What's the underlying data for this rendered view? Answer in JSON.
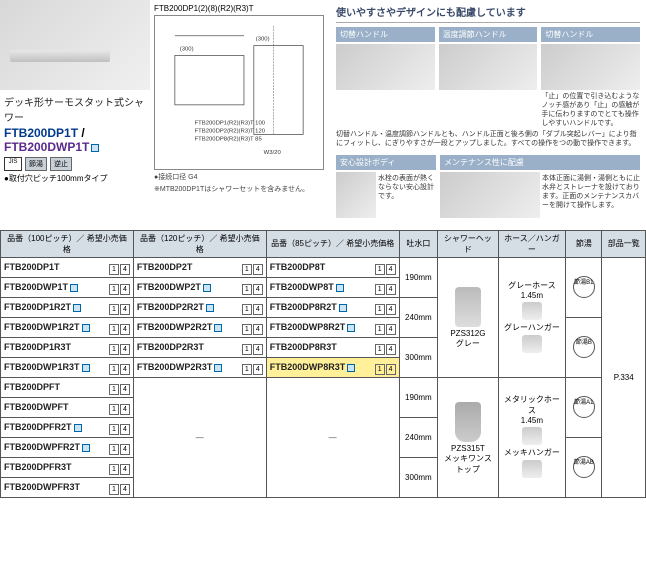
{
  "top": {
    "product_title": "デッキ形サーモスタット式シャワー",
    "num_a": "FTB200DP1T",
    "num_b": "FTB200DWP1T",
    "jis": "JIS",
    "badge1": "節湯",
    "badge2": "逆止",
    "mount_note": "●取付穴ピッチ100mmタイプ",
    "tech_label": "FTB200DP1(2)(8)(R2)(R3)T",
    "tech_note": "※MTB200DP1Tはシャワーセットを含みません。",
    "diag_connector": "●接続口径 G4"
  },
  "feat": {
    "header": "使いやすさやデザインにも配慮しています",
    "f1_t": "切替ハンドル",
    "f2_t": "温度調節ハンドル",
    "f3_t": "切替ハンドル",
    "f12_desc": "切替ハンドル・温度調節ハンドルとも、ハンドル正面と後ろ側の「ダブル突起レバー」により指にフィットし、にぎりやすさが一段とアップしました。すべての操作をつの動で操作できます。",
    "f3_desc": "「止」の位置で引き込むようなノッチ感があり「止」の感触が手に伝わりますのでとても操作しやすいハンドルです。",
    "f4_t": "安心設計ボディ",
    "f4_desc": "水栓の表面が熱くならない安心設計です。",
    "f5_t": "メンテナンス性に配慮",
    "f5_desc": "本体正面に湯側・湯側ともに止水弁とストレーナを設けております。正面のメンテナンスカバーを開けて操作します。"
  },
  "headers": {
    "h1": "品番（100ピッチ）／ 希望小売価格",
    "h2": "品番（120ピッチ）／ 希望小売価格",
    "h3": "品番（85ピッチ）／ 希望小売価格",
    "h4": "吐水口",
    "h5": "シャワーヘッド",
    "h6": "ホース／ハンガー",
    "h7": "節湯",
    "h8": "部品一覧"
  },
  "rows": {
    "c1": [
      "FTB200DP1T",
      "FTB200DWP1T",
      "FTB200DP1R2T",
      "FTB200DWP1R2T",
      "FTB200DP1R3T",
      "FTB200DWP1R3T",
      "FTB200DPFT",
      "FTB200DWPFT",
      "FTB200DPFR2T",
      "FTB200DWPFR2T",
      "FTB200DPFR3T",
      "FTB200DWPFR3T"
    ],
    "c2": [
      "FTB200DP2T",
      "FTB200DWP2T",
      "FTB200DP2R2T",
      "FTB200DWP2R2T",
      "FTB200DP2R3T",
      "FTB200DWP2R3T"
    ],
    "c3": [
      "FTB200DP8T",
      "FTB200DWP8T",
      "FTB200DP8R2T",
      "FTB200DWP8R2T",
      "FTB200DP8R3T",
      "FTB200DWP8R3T"
    ]
  },
  "codes": {
    "c14": "14",
    "c1": "1",
    "c4": "4"
  },
  "spout": {
    "s190": "190mm",
    "s240": "240mm",
    "s300": "300mm"
  },
  "shower": {
    "a_code": "PZS312G",
    "a_name": "グレー",
    "b_code": "PZS315T",
    "b_name": "メッキワンストップ"
  },
  "hose": {
    "a1": "グレーホース",
    "a2": "1.45m",
    "a3": "グレーハンガー",
    "b1": "メタリックホース",
    "b2": "1.45m",
    "b3": "メッキハンガー"
  },
  "kyuyu": {
    "b1": "節湯B1",
    "b": "節湯B",
    "a1": "節湯A1",
    "ab": "節湯AB"
  },
  "parts": {
    "page": "P.334"
  }
}
